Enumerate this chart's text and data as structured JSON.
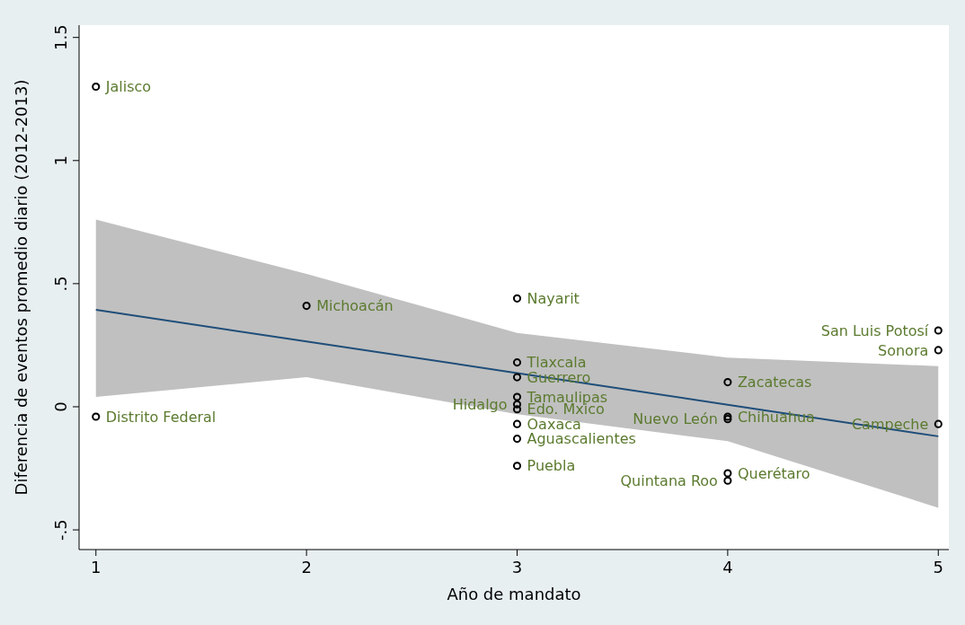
{
  "chart_data": {
    "type": "scatter",
    "xlabel": "Año de mandato",
    "ylabel": "Diferencia de eventos promedio diario (2012-2013)",
    "x": [
      1,
      1,
      2,
      3,
      3,
      3,
      3,
      3,
      3,
      3,
      3,
      3,
      4,
      4,
      4,
      4,
      4,
      5,
      5,
      5
    ],
    "series": [
      {
        "color": "#000000",
        "values": [
          1.3,
          -0.04,
          0.41,
          0.44,
          0.18,
          0.12,
          0.04,
          0.01,
          -0.01,
          -0.07,
          -0.13,
          -0.24,
          0.1,
          -0.04,
          -0.05,
          -0.27,
          -0.3,
          0.31,
          0.23,
          -0.07
        ]
      },
      {
        "type": "line",
        "marker": "none",
        "color": "#1f4e79",
        "x": [
          1,
          2,
          3,
          4,
          5
        ],
        "values": [
          0.394,
          0.265,
          0.137,
          0.008,
          -0.12
        ],
        "lower": [
          0.04,
          0.12,
          -0.03,
          -0.14,
          -0.41
        ],
        "upper": [
          0.76,
          0.54,
          0.3,
          0.2,
          0.165
        ]
      }
    ],
    "annotations": [
      {
        "text": "Jalisco",
        "x": 1,
        "y": 1.3
      },
      {
        "text": "Distrito Federal",
        "x": 1,
        "y": -0.04
      },
      {
        "text": "Michoacán",
        "x": 2,
        "y": 0.41
      },
      {
        "text": "Nayarit",
        "x": 3,
        "y": 0.44
      },
      {
        "text": "Tlaxcala",
        "x": 3,
        "y": 0.18
      },
      {
        "text": "Guerrero",
        "x": 3,
        "y": 0.12
      },
      {
        "text": "Tamaulipas",
        "x": 3,
        "y": 0.04
      },
      {
        "text": "Hidalgo",
        "x": 3,
        "y": 0.01
      },
      {
        "text": "Edo. Mxico",
        "x": 3,
        "y": -0.01
      },
      {
        "text": "Oaxaca",
        "x": 3,
        "y": -0.07
      },
      {
        "text": "Aguascalientes",
        "x": 3,
        "y": -0.13
      },
      {
        "text": "Puebla",
        "x": 3,
        "y": -0.24
      },
      {
        "text": "Zacatecas",
        "x": 4,
        "y": 0.1
      },
      {
        "text": "Chihuahua",
        "x": 4,
        "y": -0.04
      },
      {
        "text": "Nuevo León",
        "x": 4,
        "y": -0.05
      },
      {
        "text": "Querétaro",
        "x": 4,
        "y": -0.27
      },
      {
        "text": "Quintana Roo",
        "x": 4,
        "y": -0.3
      },
      {
        "text": "San Luis Potosí",
        "x": 5,
        "y": 0.31
      },
      {
        "text": "Sonora",
        "x": 5,
        "y": 0.23
      },
      {
        "text": "Campeche",
        "x": 5,
        "y": -0.07
      }
    ],
    "xlim": [
      0.92,
      5.05
    ],
    "xticks": [
      1,
      2,
      3,
      4,
      5
    ],
    "ylim": [
      -0.58,
      1.55
    ],
    "yticks": [
      {
        "value": -0.5,
        "label": "-.5"
      },
      0,
      {
        "value": 0.5,
        "label": ".5"
      },
      1,
      1.5
    ],
    "marker": "circle",
    "grid": false
  }
}
